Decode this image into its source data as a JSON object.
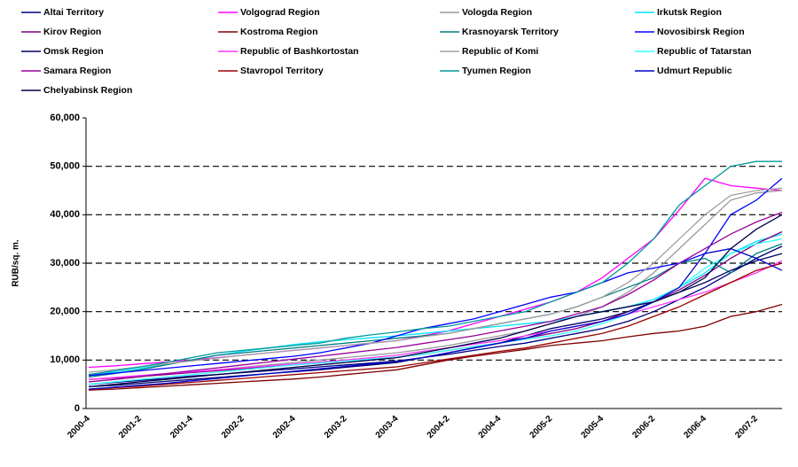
{
  "chart_data": {
    "type": "line",
    "y_label": "RUB/sq. m.",
    "categories": [
      "2000-4",
      null,
      "2001-2",
      null,
      "2001-4",
      null,
      "2002-2",
      null,
      "2002-4",
      null,
      "2003-2",
      null,
      "2003-4",
      null,
      "2004-2",
      null,
      "2004-4",
      null,
      "2005-2",
      null,
      "2005-4",
      null,
      "2006-2",
      null,
      "2006-4",
      null,
      "2007-2",
      null
    ],
    "ylim": [
      0,
      60000
    ],
    "yticks": [
      0,
      {
        "value": 10000,
        "label": "10,000"
      },
      {
        "value": 20000,
        "label": "20,000"
      },
      {
        "value": 30000,
        "label": "30,000"
      },
      {
        "value": 40000,
        "label": "40,000"
      },
      {
        "value": 50000,
        "label": "50,000"
      },
      {
        "value": 60000,
        "label": "60,000"
      }
    ],
    "grid": true,
    "legend": "top",
    "series": [
      {
        "name": "Altai Territory",
        "color": "#000080",
        "values": [
          5000,
          5400,
          5800,
          6200,
          6700,
          7000,
          7400,
          7800,
          8200,
          8600,
          9000,
          9400,
          9800,
          10500,
          11200,
          12000,
          12800,
          13500,
          14500,
          15500,
          16500,
          18000,
          20000,
          22500,
          25000,
          28000,
          31000,
          33500
        ]
      },
      {
        "name": "Volgograd Region",
        "color": "#ff00ff",
        "values": [
          8500,
          8800,
          9200,
          9600,
          10000,
          10500,
          11000,
          11500,
          12000,
          12500,
          13000,
          13500,
          14000,
          15000,
          16000,
          17500,
          19000,
          20500,
          22000,
          24000,
          27000,
          31000,
          35000,
          41000,
          47500,
          46000,
          45500,
          45000
        ]
      },
      {
        "name": "Vologda Region",
        "color": "#999999",
        "values": [
          5500,
          6000,
          6500,
          7000,
          7500,
          8000,
          8500,
          9000,
          9500,
          10000,
          10500,
          11000,
          11500,
          12200,
          13000,
          14000,
          15000,
          16000,
          17500,
          19000,
          21000,
          24000,
          28000,
          33000,
          38000,
          43000,
          44500,
          45000
        ]
      },
      {
        "name": "Irkutsk Region",
        "color": "#00e5ff",
        "values": [
          7000,
          7500,
          8300,
          9000,
          10000,
          11000,
          11800,
          12500,
          13200,
          13800,
          14200,
          14600,
          15000,
          15500,
          16000,
          16500,
          17000,
          17500,
          18000,
          19000,
          20000,
          21000,
          22500,
          25000,
          28000,
          32000,
          34500,
          36000
        ]
      },
      {
        "name": "Kirov Region",
        "color": "#800080",
        "values": [
          6000,
          6300,
          6700,
          7000,
          7400,
          7800,
          8200,
          8600,
          9000,
          9400,
          9800,
          10200,
          10600,
          11200,
          12000,
          12800,
          13500,
          14500,
          15500,
          16500,
          18000,
          20000,
          22000,
          24500,
          27500,
          31000,
          34000,
          36500
        ]
      },
      {
        "name": "Kostroma Region",
        "color": "#800000",
        "values": [
          3800,
          4000,
          4300,
          4600,
          4900,
          5200,
          5500,
          5800,
          6100,
          6500,
          7000,
          7500,
          8000,
          9000,
          10000,
          10800,
          11500,
          12200,
          13000,
          13500,
          14000,
          14800,
          15500,
          16000,
          17000,
          19000,
          20000,
          21500
        ]
      },
      {
        "name": "Krasnoyarsk Territory",
        "color": "#008080",
        "values": [
          6500,
          7200,
          8000,
          9000,
          10000,
          11000,
          11500,
          12000,
          12500,
          13000,
          13500,
          14000,
          14500,
          15000,
          15500,
          16500,
          17500,
          18500,
          19500,
          21000,
          23000,
          25000,
          27000,
          30000,
          31000,
          28000,
          32000,
          34000
        ]
      },
      {
        "name": "Novosibirsk Region",
        "color": "#0000ff",
        "values": [
          6800,
          7300,
          7800,
          8300,
          8800,
          9300,
          9800,
          10300,
          10800,
          11500,
          12500,
          13500,
          15000,
          16500,
          17500,
          18500,
          20000,
          21500,
          23000,
          24000,
          26000,
          28000,
          29000,
          30000,
          32000,
          40000,
          43000,
          47500
        ]
      },
      {
        "name": "Omsk Region",
        "color": "#000066",
        "values": [
          4500,
          4800,
          5200,
          5600,
          6000,
          6400,
          6800,
          7200,
          7600,
          8000,
          8500,
          9000,
          9500,
          10500,
          11500,
          12500,
          13500,
          15000,
          16500,
          17500,
          18500,
          20000,
          22000,
          24000,
          26000,
          28500,
          30500,
          32000
        ]
      },
      {
        "name": "Republic of Bashkortostan",
        "color": "#ff33ff",
        "values": [
          6000,
          6400,
          6800,
          7200,
          7600,
          8000,
          8400,
          8800,
          9200,
          9600,
          10000,
          10500,
          11000,
          11800,
          12500,
          13300,
          14000,
          15000,
          16000,
          17000,
          18000,
          19500,
          21000,
          22500,
          24000,
          26000,
          28000,
          30500
        ]
      },
      {
        "name": "Republic of Komi",
        "color": "#a0a0a0",
        "values": [
          7500,
          8000,
          8600,
          9200,
          9800,
          10400,
          11000,
          11500,
          12000,
          12500,
          13000,
          13500,
          14000,
          14800,
          15500,
          16500,
          17500,
          18500,
          19500,
          21000,
          23000,
          26000,
          30000,
          35000,
          40000,
          44000,
          45000,
          45500
        ]
      },
      {
        "name": "Republic of Tatarstan",
        "color": "#33ffff",
        "values": [
          5000,
          5500,
          6000,
          6500,
          7000,
          7500,
          8000,
          8500,
          9000,
          9400,
          9800,
          10200,
          10600,
          11200,
          12000,
          12800,
          13500,
          14300,
          15000,
          16000,
          17500,
          19500,
          22000,
          25000,
          29000,
          32000,
          34000,
          35000
        ]
      },
      {
        "name": "Samara Region",
        "color": "#990099",
        "values": [
          5500,
          6000,
          6600,
          7200,
          7800,
          8400,
          9000,
          9600,
          10200,
          10800,
          11400,
          12000,
          12600,
          13400,
          14200,
          15000,
          16000,
          17000,
          18000,
          19500,
          21000,
          23500,
          26500,
          30000,
          33000,
          36000,
          38500,
          40500
        ]
      },
      {
        "name": "Stavropol Territory",
        "color": "#990000",
        "values": [
          4000,
          4300,
          4600,
          5000,
          5400,
          5800,
          6200,
          6600,
          7000,
          7400,
          7800,
          8200,
          8600,
          9400,
          10200,
          11000,
          11800,
          12500,
          13500,
          14500,
          15500,
          17000,
          19000,
          21000,
          23500,
          26000,
          28500,
          30000
        ]
      },
      {
        "name": "Tyumen Region",
        "color": "#009999",
        "values": [
          7000,
          7800,
          8600,
          9500,
          10500,
          11500,
          12000,
          12500,
          13000,
          13500,
          14500,
          15200,
          15800,
          16500,
          17000,
          18000,
          19000,
          20000,
          22000,
          24000,
          26000,
          30000,
          35000,
          42000,
          46000,
          50000,
          51000,
          51000
        ]
      },
      {
        "name": "Udmurt Republic",
        "color": "#0000cc",
        "values": [
          4000,
          4400,
          4800,
          5200,
          5700,
          6200,
          6700,
          7200,
          7700,
          8200,
          8700,
          9200,
          9700,
          10500,
          11500,
          12500,
          13500,
          14500,
          16000,
          17000,
          18000,
          19500,
          22000,
          25000,
          32000,
          33000,
          31000,
          28500
        ]
      },
      {
        "name": "Chelyabinsk Region",
        "color": "#00004d",
        "values": [
          4500,
          5000,
          5500,
          6000,
          6500,
          7000,
          7500,
          8000,
          8500,
          9000,
          9500,
          10000,
          10500,
          11500,
          12500,
          13500,
          14500,
          16000,
          17500,
          19000,
          20000,
          21000,
          22000,
          24000,
          27000,
          33000,
          37000,
          40000
        ]
      }
    ]
  }
}
